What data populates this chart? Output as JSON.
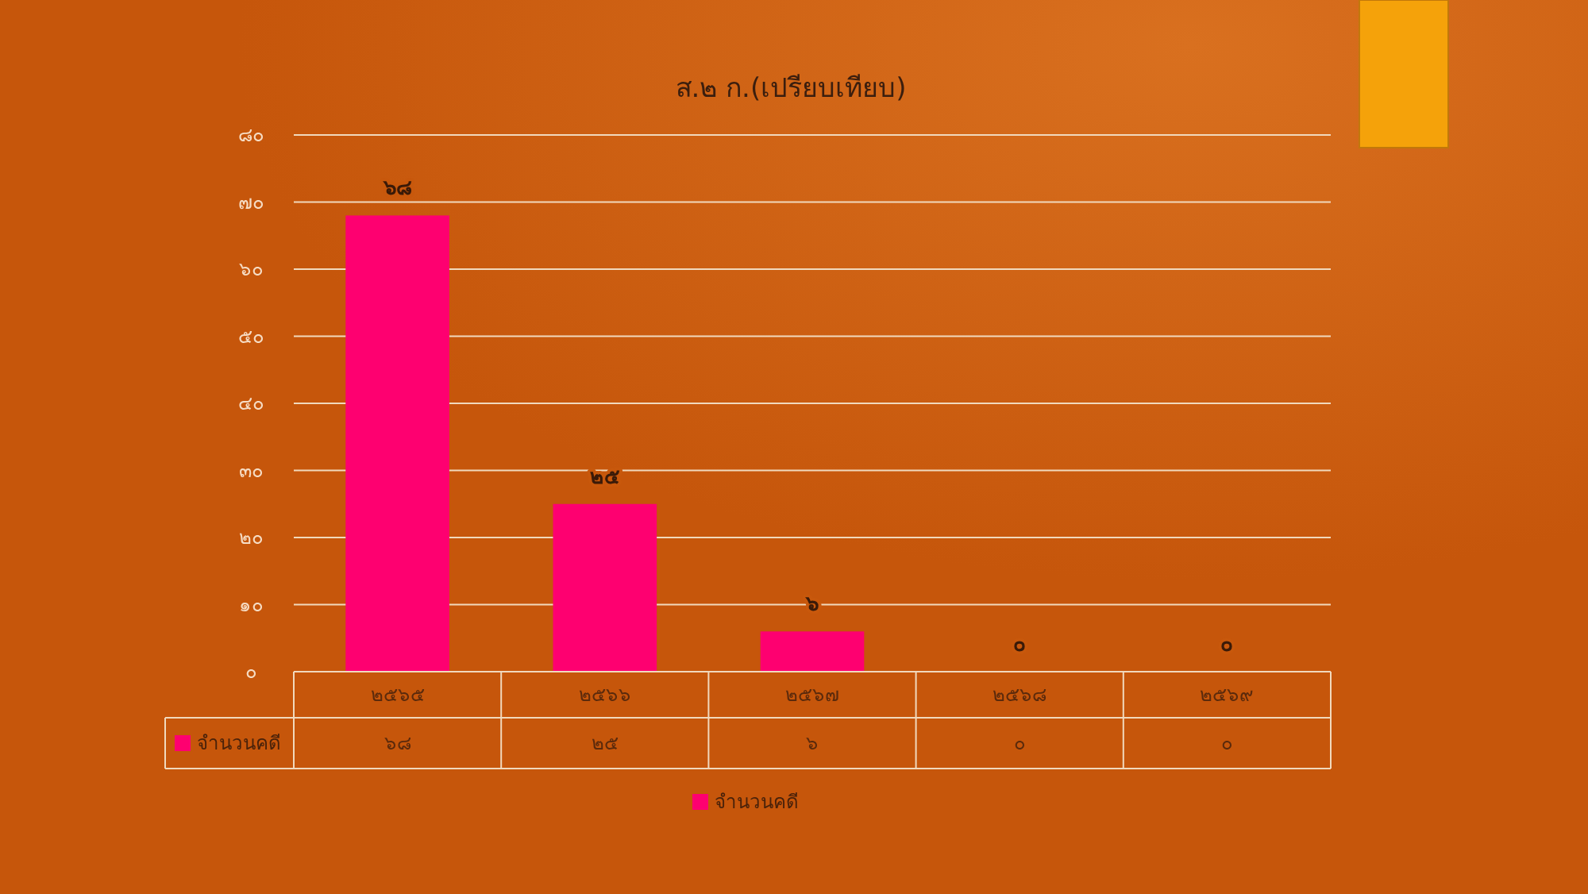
{
  "chart_data": {
    "type": "bar",
    "title": "ส.๒ ก.(เปรียบเทียบ)",
    "categories": [
      "๒๕๖๕",
      "๒๕๖๖",
      "๒๕๖๗",
      "๒๕๖๘",
      "๒๕๖๙"
    ],
    "series": [
      {
        "name": "จำนวนคดี",
        "color": "#fe0070",
        "values": [
          68,
          25,
          6,
          0,
          0
        ],
        "value_labels": [
          "๖๘",
          "๒๕",
          "๖",
          "๐",
          "๐"
        ]
      }
    ],
    "ylim": [
      0,
      80
    ],
    "yticks": [
      {
        "value": 0,
        "label": "๐"
      },
      {
        "value": 10,
        "label": "๑๐"
      },
      {
        "value": 20,
        "label": "๒๐"
      },
      {
        "value": 30,
        "label": "๓๐"
      },
      {
        "value": 40,
        "label": "๔๐"
      },
      {
        "value": 50,
        "label": "๕๐"
      },
      {
        "value": 60,
        "label": "๖๐"
      },
      {
        "value": 70,
        "label": "๗๐"
      },
      {
        "value": 80,
        "label": "๘๐"
      }
    ],
    "grid": "y",
    "legend": "bottom"
  }
}
